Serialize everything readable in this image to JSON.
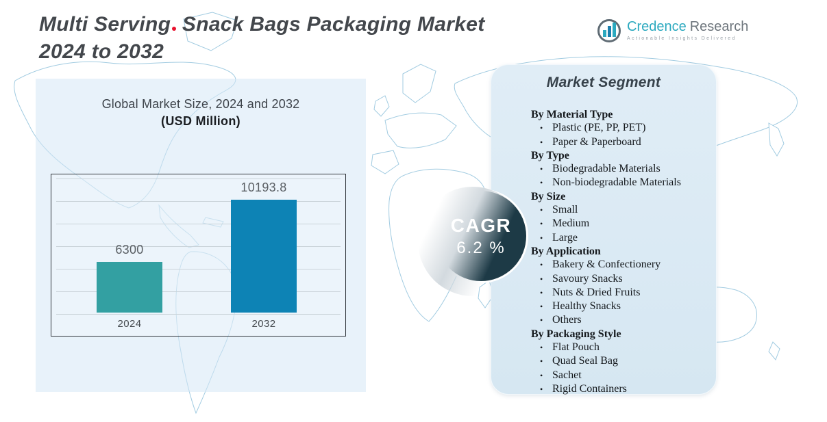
{
  "title": {
    "line1_a": "Multi Serving",
    "line1_b": "Snack Bags Packaging Market",
    "line2": "2024 to 2032"
  },
  "logo": {
    "brand_primary": "Credence",
    "brand_secondary": "Research",
    "tagline": "Actionable Insights Delivered"
  },
  "chart_panel": {
    "heading": "Global Market Size, 2024 and 2032",
    "subheading": "(USD Million)"
  },
  "chart_data": {
    "type": "bar",
    "title": "Global Market Size, 2024 and 2032 (USD Million)",
    "categories": [
      "2024",
      "2032"
    ],
    "values": [
      6300,
      10193.8
    ],
    "labels": [
      "6300",
      "10193.8"
    ],
    "series_colors": [
      "#33a0a2",
      "#0d83b5"
    ],
    "xlabel": "",
    "ylabel": "",
    "grid": true,
    "gridline_count": 7,
    "axis_baseline_estimate": 3133,
    "legend": "none"
  },
  "cagr": {
    "label": "CAGR",
    "value": "6.2 %"
  },
  "segments": {
    "heading": "Market Segment",
    "groups": [
      {
        "title": "By Material Type",
        "items": [
          "Plastic (PE, PP, PET)",
          "Paper & Paperboard"
        ]
      },
      {
        "title": "By Type",
        "items": [
          "Biodegradable Materials",
          "Non-biodegradable Materials"
        ]
      },
      {
        "title": "By Size",
        "items": [
          "Small",
          "Medium",
          "Large"
        ]
      },
      {
        "title": "By Application",
        "items": [
          "Bakery & Confectionery",
          "Savoury Snacks",
          "Nuts & Dried Fruits",
          "Healthy Snacks",
          "Others"
        ]
      },
      {
        "title": "By Packaging Style",
        "items": [
          "Flat Pouch",
          "Quad Seal Bag",
          "Sachet",
          "Rigid Containers"
        ]
      }
    ]
  },
  "colors": {
    "title_text": "#43474c",
    "accent_dot": "#e8112d",
    "bar_2024": "#33a0a2",
    "bar_2032": "#0d83b5",
    "cagr_circle": "#1d3a46",
    "left_panel": "#d5e7f5",
    "segment_panel": "#d9e9f4",
    "map_stroke": "#97c6de",
    "brand_teal": "#2ba9bf",
    "brand_gray": "#6d757c"
  }
}
